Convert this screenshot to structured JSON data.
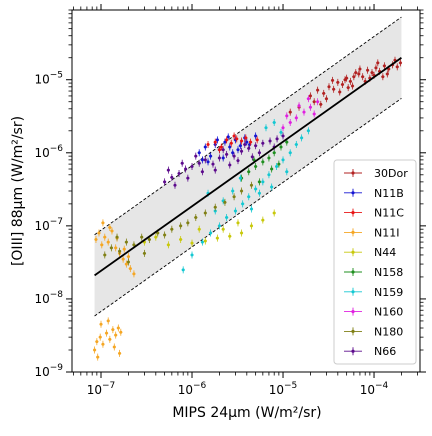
{
  "chart_data": {
    "type": "scatter",
    "title": "",
    "xlabel": "MIPS 24μm (W/m²/sr)",
    "ylabel": "[OIII] 88μm (W/m²/sr)",
    "xscale": "log",
    "yscale": "log",
    "xlim": [
      4.8e-08,
      0.00032
    ],
    "ylim": [
      1e-09,
      9e-05
    ],
    "x_ticks": [
      {
        "value": 1e-07,
        "mantissa": "10",
        "exponent": "−7"
      },
      {
        "value": 1e-06,
        "mantissa": "10",
        "exponent": "−6"
      },
      {
        "value": 1e-05,
        "mantissa": "10",
        "exponent": "−5"
      },
      {
        "value": 0.0001,
        "mantissa": "10",
        "exponent": "−4"
      }
    ],
    "y_ticks": [
      {
        "value": 1e-09,
        "mantissa": "10",
        "exponent": "−9"
      },
      {
        "value": 1e-08,
        "mantissa": "10",
        "exponent": "−8"
      },
      {
        "value": 1e-07,
        "mantissa": "10",
        "exponent": "−7"
      },
      {
        "value": 1e-06,
        "mantissa": "10",
        "exponent": "−6"
      },
      {
        "value": 1e-05,
        "mantissa": "10",
        "exponent": "−5"
      }
    ],
    "grid": false,
    "legend_position": "lower-right",
    "fit": {
      "x": [
        8.5e-08,
        0.0002
      ],
      "y": [
        2.1e-08,
        2e-05
      ],
      "band_factor": 3.6,
      "fit_color": "#000000",
      "band_color": "#e6e6e6"
    },
    "series": [
      {
        "name": "30Dor",
        "color": "#b22222",
        "points": [
          [
            2e-05,
            6e-06
          ],
          [
            2.4e-05,
            7.2e-06
          ],
          [
            2.8e-05,
            6.5e-06
          ],
          [
            3.2e-05,
            8e-06
          ],
          [
            3.6e-05,
            7.4e-06
          ],
          [
            4e-05,
            9.2e-06
          ],
          [
            4.5e-05,
            8.6e-06
          ],
          [
            5e-05,
            1.05e-05
          ],
          [
            5.5e-05,
            9.5e-06
          ],
          [
            6e-05,
            1.1e-05
          ],
          [
            6.8e-05,
            1.2e-05
          ],
          [
            7.5e-05,
            1.1e-05
          ],
          [
            8.5e-05,
            1.35e-05
          ],
          [
            9.5e-05,
            1.25e-05
          ],
          [
            0.000105,
            1.45e-05
          ],
          [
            0.000115,
            1.3e-05
          ],
          [
            0.00013,
            1.55e-05
          ],
          [
            0.000145,
            1.4e-05
          ],
          [
            0.00016,
            1.6e-05
          ],
          [
            0.00018,
            1.5e-05
          ],
          [
            0.000195,
            1.7e-05
          ],
          [
            3e-05,
            5.5e-06
          ],
          [
            3.5e-05,
            9.8e-06
          ],
          [
            4.2e-05,
            6.8e-06
          ],
          [
            5.8e-05,
            8.2e-06
          ],
          [
            7e-05,
            1.4e-05
          ],
          [
            9e-05,
            1.05e-05
          ],
          [
            0.00011,
            1.7e-05
          ],
          [
            0.00014,
            1.2e-05
          ],
          [
            0.00017,
            1.85e-05
          ],
          [
            2.6e-05,
            4.6e-06
          ],
          [
            1.5e-05,
            4.2e-06
          ],
          [
            1.2e-05,
            3.6e-06
          ],
          [
            8e-05,
            9.5e-06
          ],
          [
            6.3e-05,
            1.25e-05
          ],
          [
            0.000125,
            1.1e-05
          ],
          [
            0.0001,
            1.15e-05
          ],
          [
            2.2e-05,
            5e-06
          ],
          [
            4.8e-05,
            1e-05
          ],
          [
            5.2e-05,
            7.8e-06
          ]
        ]
      },
      {
        "name": "N11B",
        "color": "#1414d2",
        "points": [
          [
            1.2e-06,
            1e-06
          ],
          [
            1.4e-06,
            1.2e-06
          ],
          [
            1.6e-06,
            9e-07
          ],
          [
            1.8e-06,
            1.3e-06
          ],
          [
            2e-06,
            1.1e-06
          ],
          [
            2.3e-06,
            1.4e-06
          ],
          [
            2.6e-06,
            1.2e-06
          ],
          [
            3e-06,
            1.5e-06
          ],
          [
            3.4e-06,
            1.25e-06
          ],
          [
            3.8e-06,
            1.6e-06
          ],
          [
            4.3e-06,
            1.3e-06
          ],
          [
            5e-06,
            1.7e-06
          ],
          [
            2.2e-06,
            8.5e-07
          ],
          [
            2.8e-06,
            1e-06
          ],
          [
            1.5e-06,
            7.5e-07
          ],
          [
            3.2e-06,
            1.1e-06
          ],
          [
            4e-06,
            1.4e-06
          ],
          [
            1.9e-06,
            1.5e-06
          ],
          [
            2.5e-06,
            1.65e-06
          ],
          [
            1.3e-06,
            8e-07
          ]
        ]
      },
      {
        "name": "N11C",
        "color": "#e81414",
        "points": [
          [
            1.5e-06,
            1.3e-06
          ],
          [
            1.8e-06,
            1.4e-06
          ],
          [
            2.1e-06,
            1.2e-06
          ],
          [
            2.4e-06,
            1.5e-06
          ],
          [
            2.7e-06,
            1.35e-06
          ],
          [
            3.1e-06,
            1.55e-06
          ],
          [
            3.5e-06,
            1.45e-06
          ],
          [
            3.9e-06,
            1.6e-06
          ],
          [
            4.4e-06,
            1.4e-06
          ],
          [
            5.2e-06,
            1.5e-06
          ],
          [
            2e-06,
            1.1e-06
          ],
          [
            2.9e-06,
            1.7e-06
          ]
        ]
      },
      {
        "name": "N11I",
        "color": "#f5a623",
        "points": [
          [
            8.5e-08,
            2e-09
          ],
          [
            9e-08,
            2.6e-09
          ],
          [
            9.8e-08,
            3e-09
          ],
          [
            1.05e-07,
            2.4e-09
          ],
          [
            1.15e-07,
            3.4e-09
          ],
          [
            1.25e-07,
            2.8e-09
          ],
          [
            1.35e-07,
            3.8e-09
          ],
          [
            1.45e-07,
            3.2e-09
          ],
          [
            1.55e-07,
            4e-09
          ],
          [
            1.65e-07,
            3.5e-09
          ],
          [
            1e-07,
            4.5e-09
          ],
          [
            1.2e-07,
            5e-09
          ],
          [
            9.2e-08,
            1.6e-09
          ],
          [
            1.4e-07,
            2.2e-09
          ],
          [
            1.6e-07,
            1.8e-09
          ],
          [
            8.8e-08,
            6.5e-08
          ],
          [
            9.5e-08,
            8e-08
          ],
          [
            1.02e-07,
            5.5e-08
          ],
          [
            1.1e-07,
            7e-08
          ],
          [
            1.2e-07,
            6e-08
          ],
          [
            1.32e-07,
            8.5e-08
          ],
          [
            1.45e-07,
            5e-08
          ],
          [
            1.6e-07,
            4.2e-08
          ],
          [
            1.75e-07,
            3.5e-08
          ],
          [
            1.9e-07,
            3e-08
          ],
          [
            2.1e-07,
            2.6e-08
          ],
          [
            2.3e-07,
            2.2e-08
          ],
          [
            1.5e-07,
            6.8e-08
          ],
          [
            1.25e-07,
            9.5e-08
          ],
          [
            1.05e-07,
            1.1e-07
          ],
          [
            1.8e-07,
            4.8e-08
          ],
          [
            2e-07,
            3.8e-08
          ]
        ]
      },
      {
        "name": "N44",
        "color": "#c8c80a",
        "points": [
          [
            3e-07,
            6e-08
          ],
          [
            4e-07,
            7e-08
          ],
          [
            5.5e-07,
            5.5e-08
          ],
          [
            7.5e-07,
            6.5e-08
          ],
          [
            1e-06,
            5.8e-08
          ],
          [
            1.4e-06,
            6.2e-08
          ],
          [
            1.9e-06,
            6.8e-08
          ],
          [
            2.6e-06,
            7.2e-08
          ],
          [
            3.5e-06,
            8e-08
          ],
          [
            4.5e-06,
            1e-07
          ],
          [
            6e-06,
            1.2e-07
          ],
          [
            3.2e-06,
            1.1e-07
          ],
          [
            2.2e-06,
            9e-08
          ],
          [
            8e-06,
            1.5e-07
          ],
          [
            1.2e-06,
            9e-08
          ]
        ]
      },
      {
        "name": "N158",
        "color": "#1f8f1f",
        "points": [
          [
            3.5e-06,
            4.5e-07
          ],
          [
            4.2e-06,
            5.5e-07
          ],
          [
            5e-06,
            6.5e-07
          ],
          [
            6e-06,
            7.5e-07
          ],
          [
            7e-06,
            8.5e-07
          ],
          [
            8e-06,
            1e-06
          ],
          [
            9.5e-06,
            1.2e-06
          ],
          [
            1.1e-05,
            1.4e-06
          ],
          [
            5.5e-06,
            4e-07
          ],
          [
            7.5e-06,
            6e-07
          ],
          [
            9e-06,
            7e-07
          ],
          [
            4.8e-06,
            8e-07
          ]
        ]
      },
      {
        "name": "N159",
        "color": "#14c8d2",
        "points": [
          [
            8e-07,
            2.5e-08
          ],
          [
            1e-06,
            4e-08
          ],
          [
            1.3e-06,
            6e-08
          ],
          [
            1.6e-06,
            8e-08
          ],
          [
            2e-06,
            1e-07
          ],
          [
            2.4e-06,
            1.3e-07
          ],
          [
            3e-06,
            1.6e-07
          ],
          [
            3.6e-06,
            2e-07
          ],
          [
            4.2e-06,
            2.5e-07
          ],
          [
            5e-06,
            3.2e-07
          ],
          [
            6e-06,
            4e-07
          ],
          [
            7e-06,
            5e-07
          ],
          [
            8.5e-06,
            6.5e-07
          ],
          [
            1e-05,
            8e-07
          ],
          [
            1.2e-05,
            1e-06
          ],
          [
            1.4e-05,
            1.3e-06
          ],
          [
            1.6e-05,
            1.6e-06
          ],
          [
            1.9e-05,
            2e-06
          ],
          [
            6.5e-06,
            2.2e-06
          ],
          [
            8e-06,
            2.6e-06
          ],
          [
            9.5e-06,
            1.9e-06
          ],
          [
            2.8e-06,
            3e-07
          ],
          [
            4.5e-06,
            1.7e-07
          ],
          [
            5.5e-06,
            2.8e-07
          ],
          [
            3.4e-06,
            4.5e-07
          ],
          [
            2.2e-06,
            2.2e-07
          ],
          [
            1.8e-06,
            1.6e-07
          ],
          [
            1.5e-06,
            2.8e-07
          ],
          [
            7.5e-06,
            3.4e-07
          ],
          [
            1.1e-05,
            5.5e-07
          ]
        ]
      },
      {
        "name": "N160",
        "color": "#e020e0",
        "points": [
          [
            1e-05,
            2.2e-06
          ],
          [
            1.2e-05,
            2.6e-06
          ],
          [
            1.4e-05,
            3e-06
          ],
          [
            1.7e-05,
            3.6e-06
          ],
          [
            2e-05,
            4.2e-06
          ],
          [
            2.4e-05,
            5e-06
          ],
          [
            1.5e-05,
            4.4e-06
          ],
          [
            1.9e-05,
            5.5e-06
          ],
          [
            1.1e-05,
            3.2e-06
          ],
          [
            2.2e-05,
            3.4e-06
          ]
        ]
      },
      {
        "name": "N180",
        "color": "#7f7f14",
        "points": [
          [
            1.1e-07,
            4e-08
          ],
          [
            1.3e-07,
            5e-08
          ],
          [
            1.6e-07,
            4.5e-08
          ],
          [
            1.9e-07,
            6e-08
          ],
          [
            2.3e-07,
            5.5e-08
          ],
          [
            2.8e-07,
            7e-08
          ],
          [
            3.4e-07,
            6.5e-08
          ],
          [
            4.2e-07,
            8e-08
          ],
          [
            5e-07,
            7.5e-08
          ],
          [
            6e-07,
            9e-08
          ],
          [
            7.5e-07,
            1e-07
          ],
          [
            9e-07,
            1.1e-07
          ],
          [
            1.1e-06,
            1.3e-07
          ],
          [
            1.4e-06,
            1.5e-07
          ],
          [
            1.8e-06,
            1.8e-07
          ],
          [
            2.3e-06,
            2.1e-07
          ],
          [
            2.9e-06,
            2.5e-07
          ],
          [
            3.5e-06,
            3e-07
          ],
          [
            4.5e-06,
            3.6e-07
          ],
          [
            2e-07,
            3.2e-08
          ],
          [
            3e-07,
            4.2e-08
          ],
          [
            1.5e-07,
            7e-08
          ]
        ]
      },
      {
        "name": "N66",
        "color": "#5c0a8c",
        "points": [
          [
            5e-07,
            4e-07
          ],
          [
            6e-07,
            4.6e-07
          ],
          [
            7.2e-07,
            5.2e-07
          ],
          [
            8.5e-07,
            6e-07
          ],
          [
            1e-06,
            6.5e-07
          ],
          [
            1.2e-06,
            7.2e-07
          ],
          [
            1.4e-06,
            8e-07
          ],
          [
            1.7e-06,
            7e-07
          ],
          [
            2e-06,
            8.5e-07
          ],
          [
            2.4e-06,
            9.5e-07
          ],
          [
            2.9e-06,
            9e-07
          ],
          [
            3.5e-06,
            1.05e-06
          ],
          [
            4.2e-06,
            1.15e-06
          ],
          [
            5e-06,
            1.25e-06
          ],
          [
            6e-06,
            1.35e-06
          ],
          [
            7.2e-06,
            1.45e-06
          ],
          [
            8.6e-06,
            1.55e-06
          ],
          [
            1e-05,
            1.7e-06
          ],
          [
            6.5e-07,
            3.6e-07
          ],
          [
            9e-07,
            4.5e-07
          ],
          [
            1.3e-06,
            5.5e-07
          ],
          [
            1.8e-06,
            5.8e-07
          ],
          [
            2.6e-06,
            6.8e-07
          ],
          [
            3.2e-06,
            7.8e-07
          ],
          [
            4.6e-06,
            8.8e-07
          ],
          [
            1.1e-06,
            9e-07
          ],
          [
            5.5e-07,
            5.8e-07
          ],
          [
            7.8e-07,
            7.2e-07
          ],
          [
            2.2e-06,
            1.1e-06
          ],
          [
            3.8e-06,
            1.3e-06
          ],
          [
            5.5e-06,
            1e-06
          ],
          [
            8e-06,
            1.2e-06
          ]
        ]
      }
    ]
  }
}
